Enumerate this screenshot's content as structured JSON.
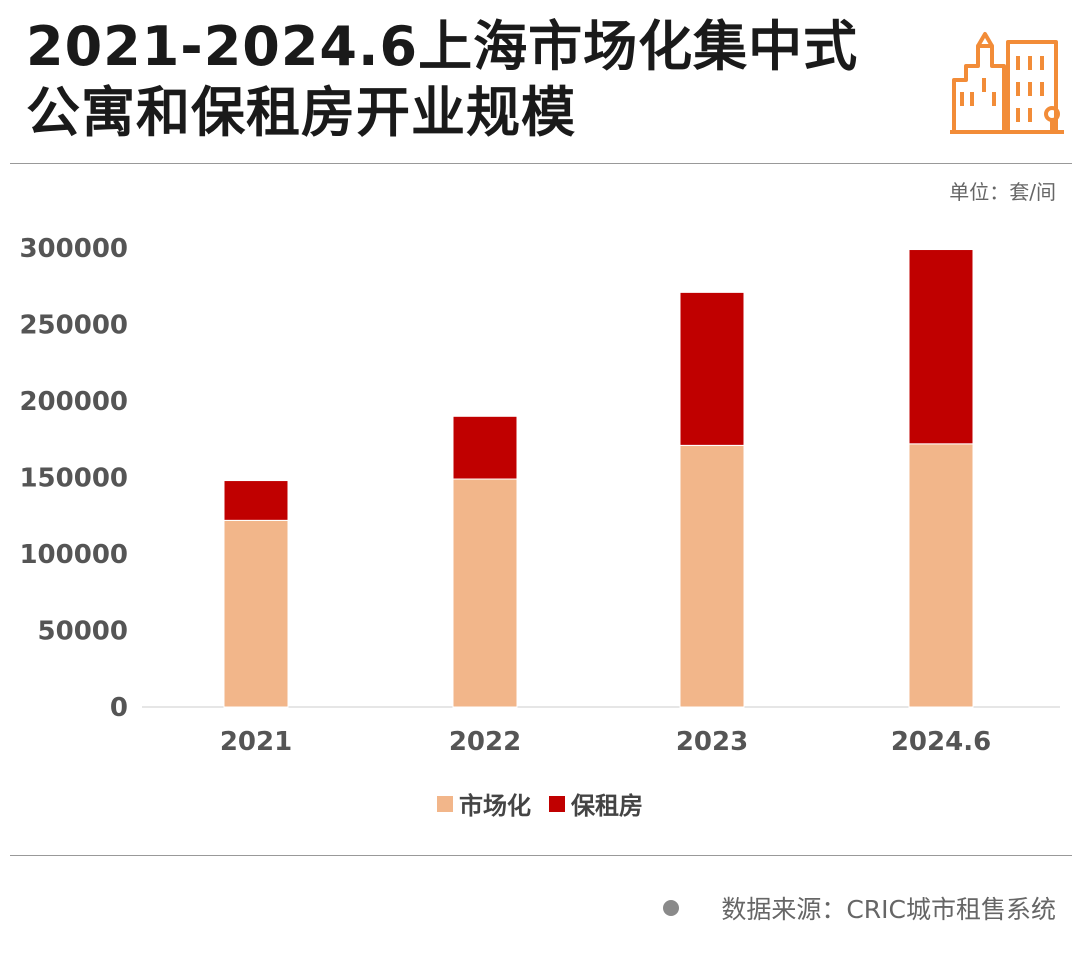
{
  "header": {
    "title_line1": "2021-2024.6上海市场化集中式",
    "title_line2": "公寓和保租房开业规模"
  },
  "unit_label": "单位：套/间",
  "source_label": "数据来源：CRIC城市租售系统",
  "icons": {
    "logo": "city-buildings-icon",
    "source_marker": "dot-icon"
  },
  "colors": {
    "market": "#F2B68A",
    "affordable": "#C00000",
    "accent": "#F28C38"
  },
  "chart_data": {
    "type": "bar",
    "stacked": true,
    "categories": [
      "2021",
      "2022",
      "2023",
      "2024.6"
    ],
    "series": [
      {
        "name": "市场化",
        "values": [
          122000,
          149000,
          171000,
          172000
        ]
      },
      {
        "name": "保租房",
        "values": [
          26000,
          41000,
          100000,
          127000
        ]
      }
    ],
    "ylim": [
      0,
      300000
    ],
    "yticks": [
      "0",
      "50000",
      "100000",
      "150000",
      "200000",
      "250000",
      "300000"
    ],
    "legend_position": "bottom",
    "grid": false
  }
}
